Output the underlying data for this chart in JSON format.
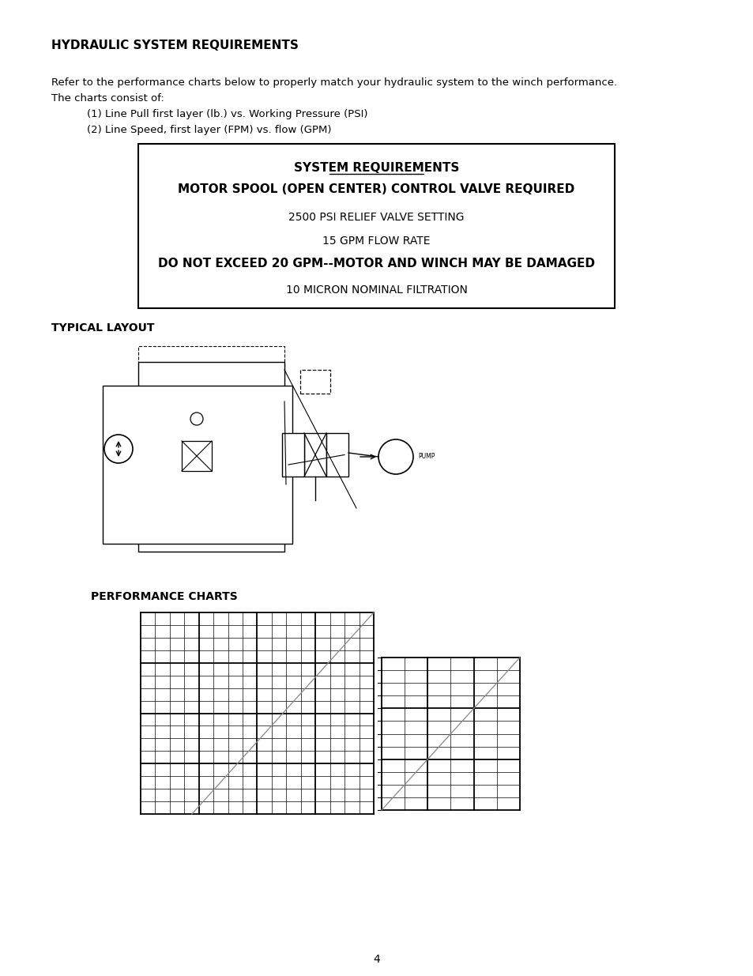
{
  "page_bg": "#ffffff",
  "page_title": "HYDRAULIC SYSTEM REQUIREMENTS",
  "intro_text_line1": "Refer to the performance charts below to properly match your hydraulic system to the winch performance.",
  "intro_text_line2": "The charts consist of:",
  "intro_item1": "(1) Line Pull first layer (lb.) vs. Working Pressure (PSI)",
  "intro_item2": "(2) Line Speed, first layer (FPM) vs. flow (GPM)",
  "box_line1": "SYSTEM REQUIREMENTS",
  "box_line2": "MOTOR SPOOL (OPEN CENTER) CONTROL VALVE REQUIRED",
  "box_line3": "2500 PSI RELIEF VALVE SETTING",
  "box_line4": "15 GPM FLOW RATE",
  "box_line5": "DO NOT EXCEED 20 GPM--MOTOR AND WINCH MAY BE DAMAGED",
  "box_line6": "10 MICRON NOMINAL FILTRATION",
  "typical_layout_label": "TYPICAL LAYOUT",
  "performance_charts_label": "PERFORMANCE CHARTS",
  "page_number": "4",
  "chart1_cols": 16,
  "chart1_rows": 16,
  "chart2_cols": 6,
  "chart2_rows": 12
}
